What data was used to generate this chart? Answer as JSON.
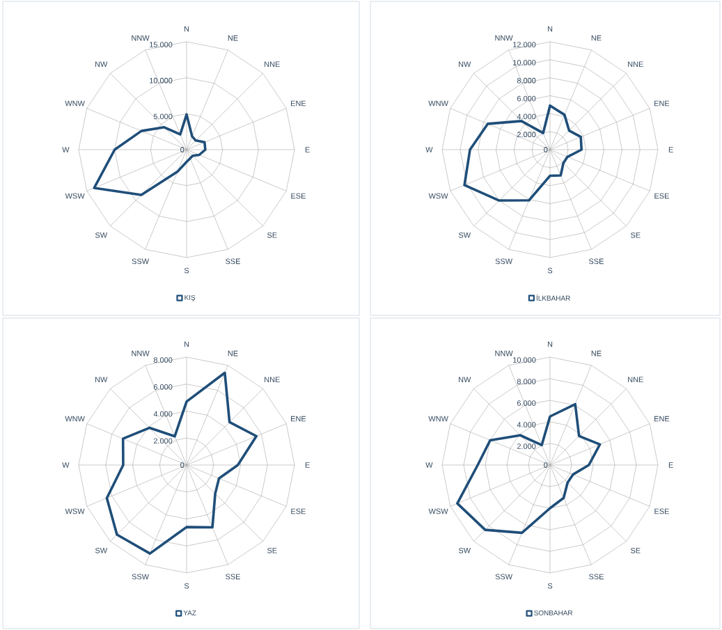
{
  "chart_data": [
    {
      "type": "radar",
      "categories": [
        "N",
        "NE",
        "NNE",
        "ENE",
        "E",
        "ESE",
        "SE",
        "SSE",
        "S",
        "SSW",
        "SW",
        "WSW",
        "W",
        "WNW",
        "NW",
        "NNW"
      ],
      "series": [
        {
          "name": "KIŞ",
          "color": "#1f4e79",
          "values": [
            4900,
            2000,
            1800,
            2700,
            2600,
            1900,
            1200,
            1300,
            1700,
            3300,
            8900,
            13900,
            10000,
            6800,
            4400,
            2300
          ]
        }
      ],
      "ylim": [
        0,
        15000
      ],
      "yticks": [
        0,
        {
          "value": 5000,
          "label": "5.000"
        },
        {
          "value": 10000,
          "label": "10.000"
        },
        {
          "value": 15000,
          "label": "15.000"
        }
      ],
      "grid": true,
      "legend": "bottom"
    },
    {
      "type": "radar",
      "categories": [
        "N",
        "NE",
        "NNE",
        "ENE",
        "E",
        "ESE",
        "SE",
        "SSE",
        "S",
        "SSW",
        "SW",
        "WSW",
        "W",
        "WNW",
        "NW",
        "NNW"
      ],
      "series": [
        {
          "name": "İLKBAHAR",
          "color": "#1f4e79",
          "values": [
            4900,
            4200,
            3000,
            3700,
            3500,
            2100,
            2100,
            3100,
            2900,
            6100,
            8000,
            10300,
            8900,
            7500,
            4500,
            2000
          ]
        }
      ],
      "ylim": [
        0,
        12000
      ],
      "yticks": [
        0,
        {
          "value": 2000,
          "label": "2.000"
        },
        {
          "value": 4000,
          "label": "4.000"
        },
        {
          "value": 6000,
          "label": "6.000"
        },
        {
          "value": 8000,
          "label": "8.000"
        },
        {
          "value": 10000,
          "label": "10.000"
        },
        {
          "value": 12000,
          "label": "12.000"
        }
      ],
      "grid": true,
      "legend": "bottom"
    },
    {
      "type": "radar",
      "categories": [
        "N",
        "NE",
        "NNE",
        "ENE",
        "E",
        "ESE",
        "SE",
        "SSE",
        "S",
        "SSW",
        "SW",
        "WSW",
        "W",
        "WNW",
        "NW",
        "NNW"
      ],
      "series": [
        {
          "name": "YAZ",
          "color": "#1f4e79",
          "values": [
            4700,
            7400,
            4500,
            5600,
            3800,
            2600,
            3000,
            5000,
            4600,
            7100,
            7300,
            6400,
            4700,
            5100,
            3900,
            2300
          ]
        }
      ],
      "ylim": [
        0,
        8000
      ],
      "yticks": [
        0,
        {
          "value": 2000,
          "label": "2.000"
        },
        {
          "value": 4000,
          "label": "4.000"
        },
        {
          "value": 6000,
          "label": "6.000"
        },
        {
          "value": 8000,
          "label": "8.000"
        }
      ],
      "grid": true,
      "legend": "bottom"
    },
    {
      "type": "radar",
      "categories": [
        "N",
        "NE",
        "NNE",
        "ENE",
        "E",
        "ESE",
        "SE",
        "SSE",
        "S",
        "SSW",
        "SW",
        "WSW",
        "W",
        "WNW",
        "NW",
        "NNW"
      ],
      "series": [
        {
          "name": "SONBAHAR",
          "color": "#1f4e79",
          "values": [
            4500,
            6100,
            3800,
            5000,
            3600,
            2300,
            2300,
            3300,
            4000,
            6800,
            8500,
            9300,
            6700,
            6000,
            3900,
            2000
          ]
        }
      ],
      "ylim": [
        0,
        10000
      ],
      "yticks": [
        0,
        {
          "value": 2000,
          "label": "2.000"
        },
        {
          "value": 4000,
          "label": "4.000"
        },
        {
          "value": 6000,
          "label": "6.000"
        },
        {
          "value": 8000,
          "label": "8.000"
        },
        {
          "value": 10000,
          "label": "10.000"
        }
      ],
      "grid": true,
      "legend": "bottom"
    }
  ]
}
